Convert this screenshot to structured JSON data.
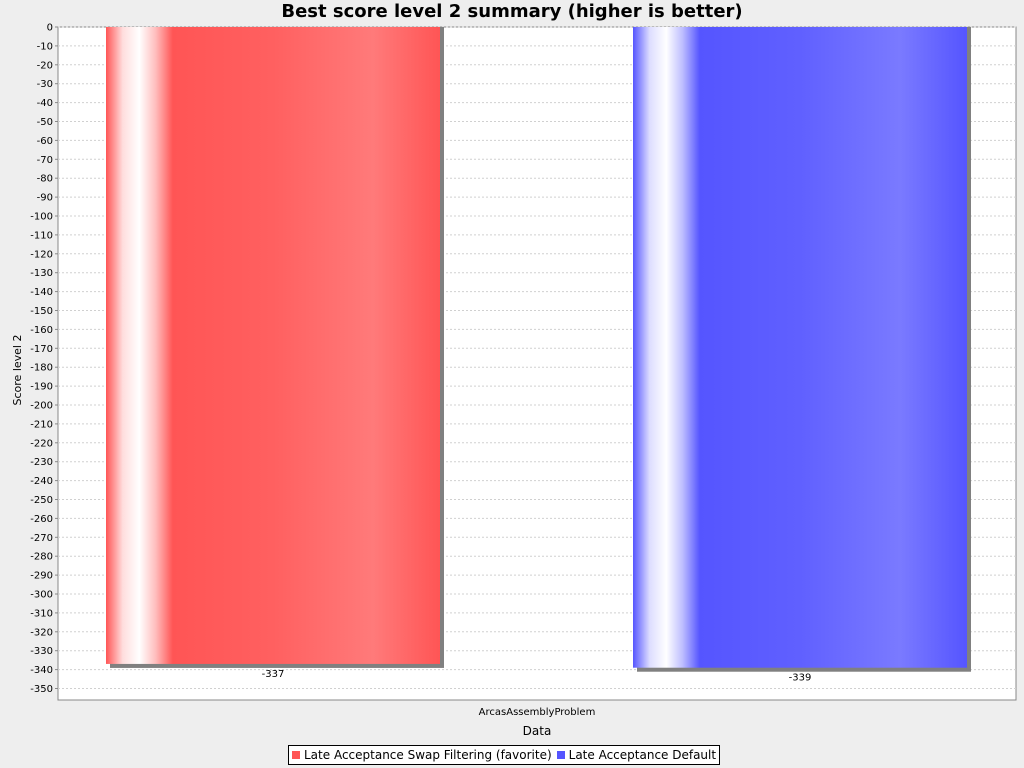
{
  "chart_data": {
    "type": "bar",
    "title": "Best score level 2 summary (higher is better)",
    "xlabel": "Data",
    "ylabel": "Score level 2",
    "categories": [
      "ArcasAssemblyProblem"
    ],
    "series": [
      {
        "name": "Late Acceptance Swap Filtering (favorite)",
        "values": [
          -337
        ],
        "color": "#ff5555"
      },
      {
        "name": "Late Acceptance Default",
        "values": [
          -339
        ],
        "color": "#5555ff"
      }
    ],
    "data_labels": [
      "-337",
      "-339"
    ],
    "ylim": [
      -355,
      0
    ],
    "yticks": [
      0,
      -10,
      -20,
      -30,
      -40,
      -50,
      -60,
      -70,
      -80,
      -90,
      -100,
      -110,
      -120,
      -130,
      -140,
      -150,
      -160,
      -170,
      -180,
      -190,
      -200,
      -210,
      -220,
      -230,
      -240,
      -250,
      -260,
      -270,
      -280,
      -290,
      -300,
      -310,
      -320,
      -330,
      -340,
      -350
    ],
    "grid": true,
    "legend_position": "bottom"
  }
}
